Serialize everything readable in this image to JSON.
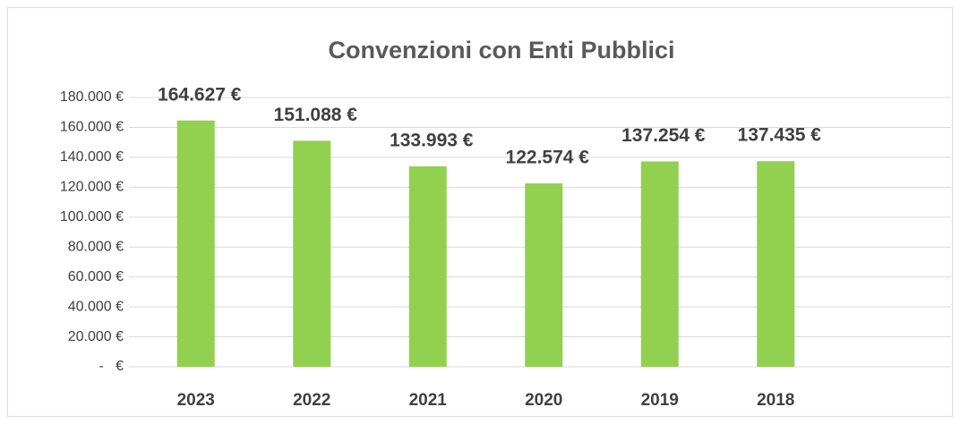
{
  "chart_data": {
    "type": "bar",
    "title": "Convenzioni con Enti Pubblici",
    "categories": [
      "2023",
      "2022",
      "2021",
      "2020",
      "2019",
      "2018"
    ],
    "values": [
      164627,
      151088,
      133993,
      122574,
      137254,
      137435
    ],
    "value_labels": [
      "164.627 €",
      "151.088 €",
      "133.993 €",
      "122.574 €",
      "137.254 €",
      "137.435 €"
    ],
    "color": "#92d050",
    "ylim": [
      0,
      180000
    ],
    "yticks": [
      {
        "value": 0,
        "label": "-   €"
      },
      {
        "value": 20000,
        "label": "20.000 €"
      },
      {
        "value": 40000,
        "label": "40.000 €"
      },
      {
        "value": 60000,
        "label": "60.000 €"
      },
      {
        "value": 80000,
        "label": "80.000 €"
      },
      {
        "value": 100000,
        "label": "100.000 €"
      },
      {
        "value": 120000,
        "label": "120.000 €"
      },
      {
        "value": 140000,
        "label": "140.000 €"
      },
      {
        "value": 160000,
        "label": "160.000 €"
      },
      {
        "value": 180000,
        "label": "180.000 €"
      }
    ],
    "grid": true
  }
}
